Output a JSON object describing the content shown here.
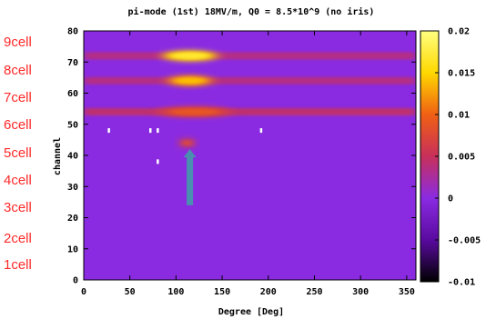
{
  "chart_data": {
    "type": "heatmap",
    "title": "pi-mode (1st) 18MV/m, Q0 = 8.5*10^9 (no iris)",
    "xlabel": "Degree [Deg]",
    "ylabel": "channel",
    "xlim": [
      0,
      360
    ],
    "ylim": [
      0,
      80
    ],
    "xticks": [
      "0",
      "50",
      "100",
      "150",
      "200",
      "250",
      "300",
      "350"
    ],
    "yticks": [
      "0",
      "10",
      "20",
      "30",
      "40",
      "50",
      "60",
      "70",
      "80"
    ],
    "colorbar": {
      "range": [
        -0.01,
        0.02
      ],
      "ticks": [
        "0.02",
        "0.015",
        "0.01",
        "0.005",
        "0",
        "-0.005",
        "-0.01"
      ],
      "colors": [
        "#000000",
        "#5a0aa0",
        "#8a2be2",
        "#c8305a",
        "#f06014",
        "#ffd800",
        "#ffff80"
      ]
    },
    "background_value": 0.0,
    "hotspots": [
      {
        "cell": "8cell",
        "x_center": 115,
        "x_width": 60,
        "channel": 72,
        "value": 0.015
      },
      {
        "cell": "7cell",
        "x_center": 115,
        "x_width": 50,
        "channel": 64,
        "value": 0.012
      },
      {
        "cell": "6cell",
        "x_center": 120,
        "x_width": 80,
        "channel": 54,
        "value": 0.007
      },
      {
        "cell": "5cell",
        "x_center": 112,
        "x_width": 14,
        "channel": 44,
        "value": 0.006
      }
    ],
    "horizontal_bands": [
      {
        "channel": 72,
        "value": 0.004
      },
      {
        "channel": 64,
        "value": 0.004
      },
      {
        "channel": 54,
        "value": 0.005
      }
    ],
    "white_pixels": [
      {
        "x": 27,
        "channel": 48
      },
      {
        "x": 72,
        "channel": 48
      },
      {
        "x": 80,
        "channel": 48
      },
      {
        "x": 192,
        "channel": 48
      },
      {
        "x": 80,
        "channel": 38
      }
    ],
    "arrow": {
      "x": 115,
      "channel_from": 24,
      "channel_to": 42,
      "color": "#4a8fb0"
    },
    "cell_labels": [
      "9cell",
      "8cell",
      "7cell",
      "6cell",
      "5cell",
      "4cell",
      "3cell",
      "2cell",
      "1cell"
    ],
    "grid": false
  }
}
